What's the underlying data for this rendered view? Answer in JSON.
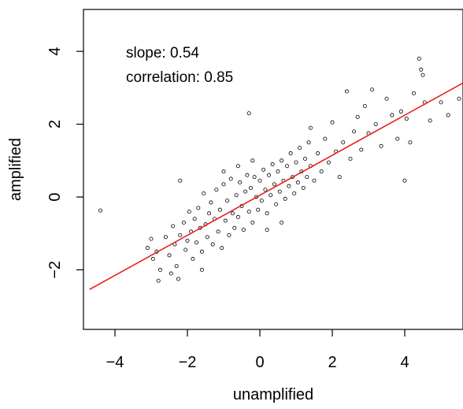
{
  "chart_data": {
    "type": "scatter",
    "xlabel": "unamplified",
    "ylabel": "amplified",
    "xlim": [
      -4.7,
      5.8
    ],
    "ylim": [
      -3.7,
      5.2
    ],
    "xticks": [
      -4,
      -2,
      0,
      2,
      4
    ],
    "xtick_labels": [
      "−4",
      "−2",
      "0",
      "2",
      "4"
    ],
    "yticks": [
      -2,
      0,
      2,
      4
    ],
    "ytick_labels": [
      "−2",
      "0",
      "2",
      "4"
    ],
    "grid": false,
    "annotations": [
      "slope: 0.54",
      "correlation: 0.85"
    ],
    "fit_line": {
      "slope": 0.54,
      "intercept": 0.0,
      "color": "#e8231e"
    },
    "points": [
      [
        -4.4,
        -0.37
      ],
      [
        -3.1,
        -1.4
      ],
      [
        -3.0,
        -1.15
      ],
      [
        -2.95,
        -1.7
      ],
      [
        -2.85,
        -1.5
      ],
      [
        -2.8,
        -2.3
      ],
      [
        -2.75,
        -2.0
      ],
      [
        -2.6,
        -1.1
      ],
      [
        -2.5,
        -1.6
      ],
      [
        -2.45,
        -2.1
      ],
      [
        -2.4,
        -0.8
      ],
      [
        -2.35,
        -1.3
      ],
      [
        -2.3,
        -1.9
      ],
      [
        -2.25,
        -2.25
      ],
      [
        -2.2,
        -1.05
      ],
      [
        -2.2,
        0.45
      ],
      [
        -2.1,
        -0.7
      ],
      [
        -2.05,
        -1.45
      ],
      [
        -2.0,
        -1.2
      ],
      [
        -1.95,
        -0.4
      ],
      [
        -1.9,
        -0.95
      ],
      [
        -1.85,
        -1.7
      ],
      [
        -1.8,
        -0.6
      ],
      [
        -1.75,
        -1.25
      ],
      [
        -1.7,
        -0.3
      ],
      [
        -1.65,
        -0.85
      ],
      [
        -1.6,
        -1.5
      ],
      [
        -1.55,
        0.1
      ],
      [
        -1.5,
        -0.75
      ],
      [
        -1.45,
        -1.1
      ],
      [
        -1.4,
        -0.45
      ],
      [
        -1.35,
        -0.15
      ],
      [
        -1.3,
        -1.3
      ],
      [
        -1.25,
        -0.6
      ],
      [
        -1.2,
        0.2
      ],
      [
        -1.15,
        -0.95
      ],
      [
        -1.1,
        -0.35
      ],
      [
        -1.05,
        -1.4
      ],
      [
        -1.0,
        0.35
      ],
      [
        -0.95,
        -0.65
      ],
      [
        -0.9,
        -0.1
      ],
      [
        -0.85,
        -1.05
      ],
      [
        -0.8,
        0.5
      ],
      [
        -0.75,
        -0.45
      ],
      [
        -0.7,
        -0.85
      ],
      [
        -0.65,
        0.05
      ],
      [
        -0.6,
        -0.55
      ],
      [
        -0.55,
        0.4
      ],
      [
        -0.5,
        -0.25
      ],
      [
        -0.45,
        -0.9
      ],
      [
        -0.4,
        0.15
      ],
      [
        -0.35,
        0.6
      ],
      [
        -0.3,
        -0.4
      ],
      [
        -0.25,
        0.25
      ],
      [
        -0.2,
        -0.7
      ],
      [
        -0.15,
        0.55
      ],
      [
        -0.1,
        0.0
      ],
      [
        -0.05,
        -0.35
      ],
      [
        0.0,
        0.45
      ],
      [
        0.05,
        -0.1
      ],
      [
        0.1,
        0.75
      ],
      [
        0.15,
        0.2
      ],
      [
        0.2,
        -0.45
      ],
      [
        0.25,
        0.6
      ],
      [
        0.3,
        0.05
      ],
      [
        0.35,
        0.9
      ],
      [
        0.4,
        0.35
      ],
      [
        0.45,
        -0.2
      ],
      [
        0.5,
        0.7
      ],
      [
        0.55,
        0.15
      ],
      [
        0.6,
        1.0
      ],
      [
        0.65,
        0.45
      ],
      [
        0.7,
        -0.05
      ],
      [
        0.75,
        0.85
      ],
      [
        0.8,
        0.3
      ],
      [
        0.85,
        1.2
      ],
      [
        0.9,
        0.55
      ],
      [
        0.95,
        0.1
      ],
      [
        1.0,
        0.95
      ],
      [
        1.05,
        0.4
      ],
      [
        1.1,
        1.35
      ],
      [
        1.15,
        0.7
      ],
      [
        1.2,
        0.25
      ],
      [
        1.25,
        1.05
      ],
      [
        1.3,
        0.55
      ],
      [
        1.35,
        1.5
      ],
      [
        1.4,
        0.85
      ],
      [
        1.5,
        0.45
      ],
      [
        1.6,
        1.2
      ],
      [
        1.7,
        0.7
      ],
      [
        1.8,
        1.6
      ],
      [
        1.9,
        0.95
      ],
      [
        2.0,
        2.05
      ],
      [
        2.1,
        1.25
      ],
      [
        2.2,
        0.55
      ],
      [
        2.3,
        1.5
      ],
      [
        2.4,
        2.9
      ],
      [
        2.5,
        1.05
      ],
      [
        2.6,
        1.8
      ],
      [
        2.7,
        2.2
      ],
      [
        2.8,
        1.3
      ],
      [
        2.9,
        2.5
      ],
      [
        3.0,
        1.75
      ],
      [
        3.1,
        2.95
      ],
      [
        3.2,
        2.0
      ],
      [
        3.35,
        1.4
      ],
      [
        3.5,
        2.7
      ],
      [
        3.65,
        2.25
      ],
      [
        3.8,
        1.6
      ],
      [
        3.9,
        2.35
      ],
      [
        4.0,
        0.45
      ],
      [
        4.05,
        2.15
      ],
      [
        4.15,
        1.5
      ],
      [
        4.25,
        2.85
      ],
      [
        4.4,
        3.8
      ],
      [
        4.45,
        3.5
      ],
      [
        4.5,
        3.35
      ],
      [
        4.55,
        2.6
      ],
      [
        4.7,
        2.1
      ],
      [
        5.0,
        2.6
      ],
      [
        5.2,
        2.25
      ],
      [
        5.5,
        2.7
      ],
      [
        -0.6,
        0.85
      ],
      [
        -0.2,
        1.0
      ],
      [
        0.2,
        -0.9
      ],
      [
        -1.0,
        0.7
      ],
      [
        0.6,
        -0.7
      ],
      [
        -1.6,
        -2.0
      ],
      [
        1.4,
        1.9
      ],
      [
        -0.3,
        2.3
      ]
    ]
  }
}
